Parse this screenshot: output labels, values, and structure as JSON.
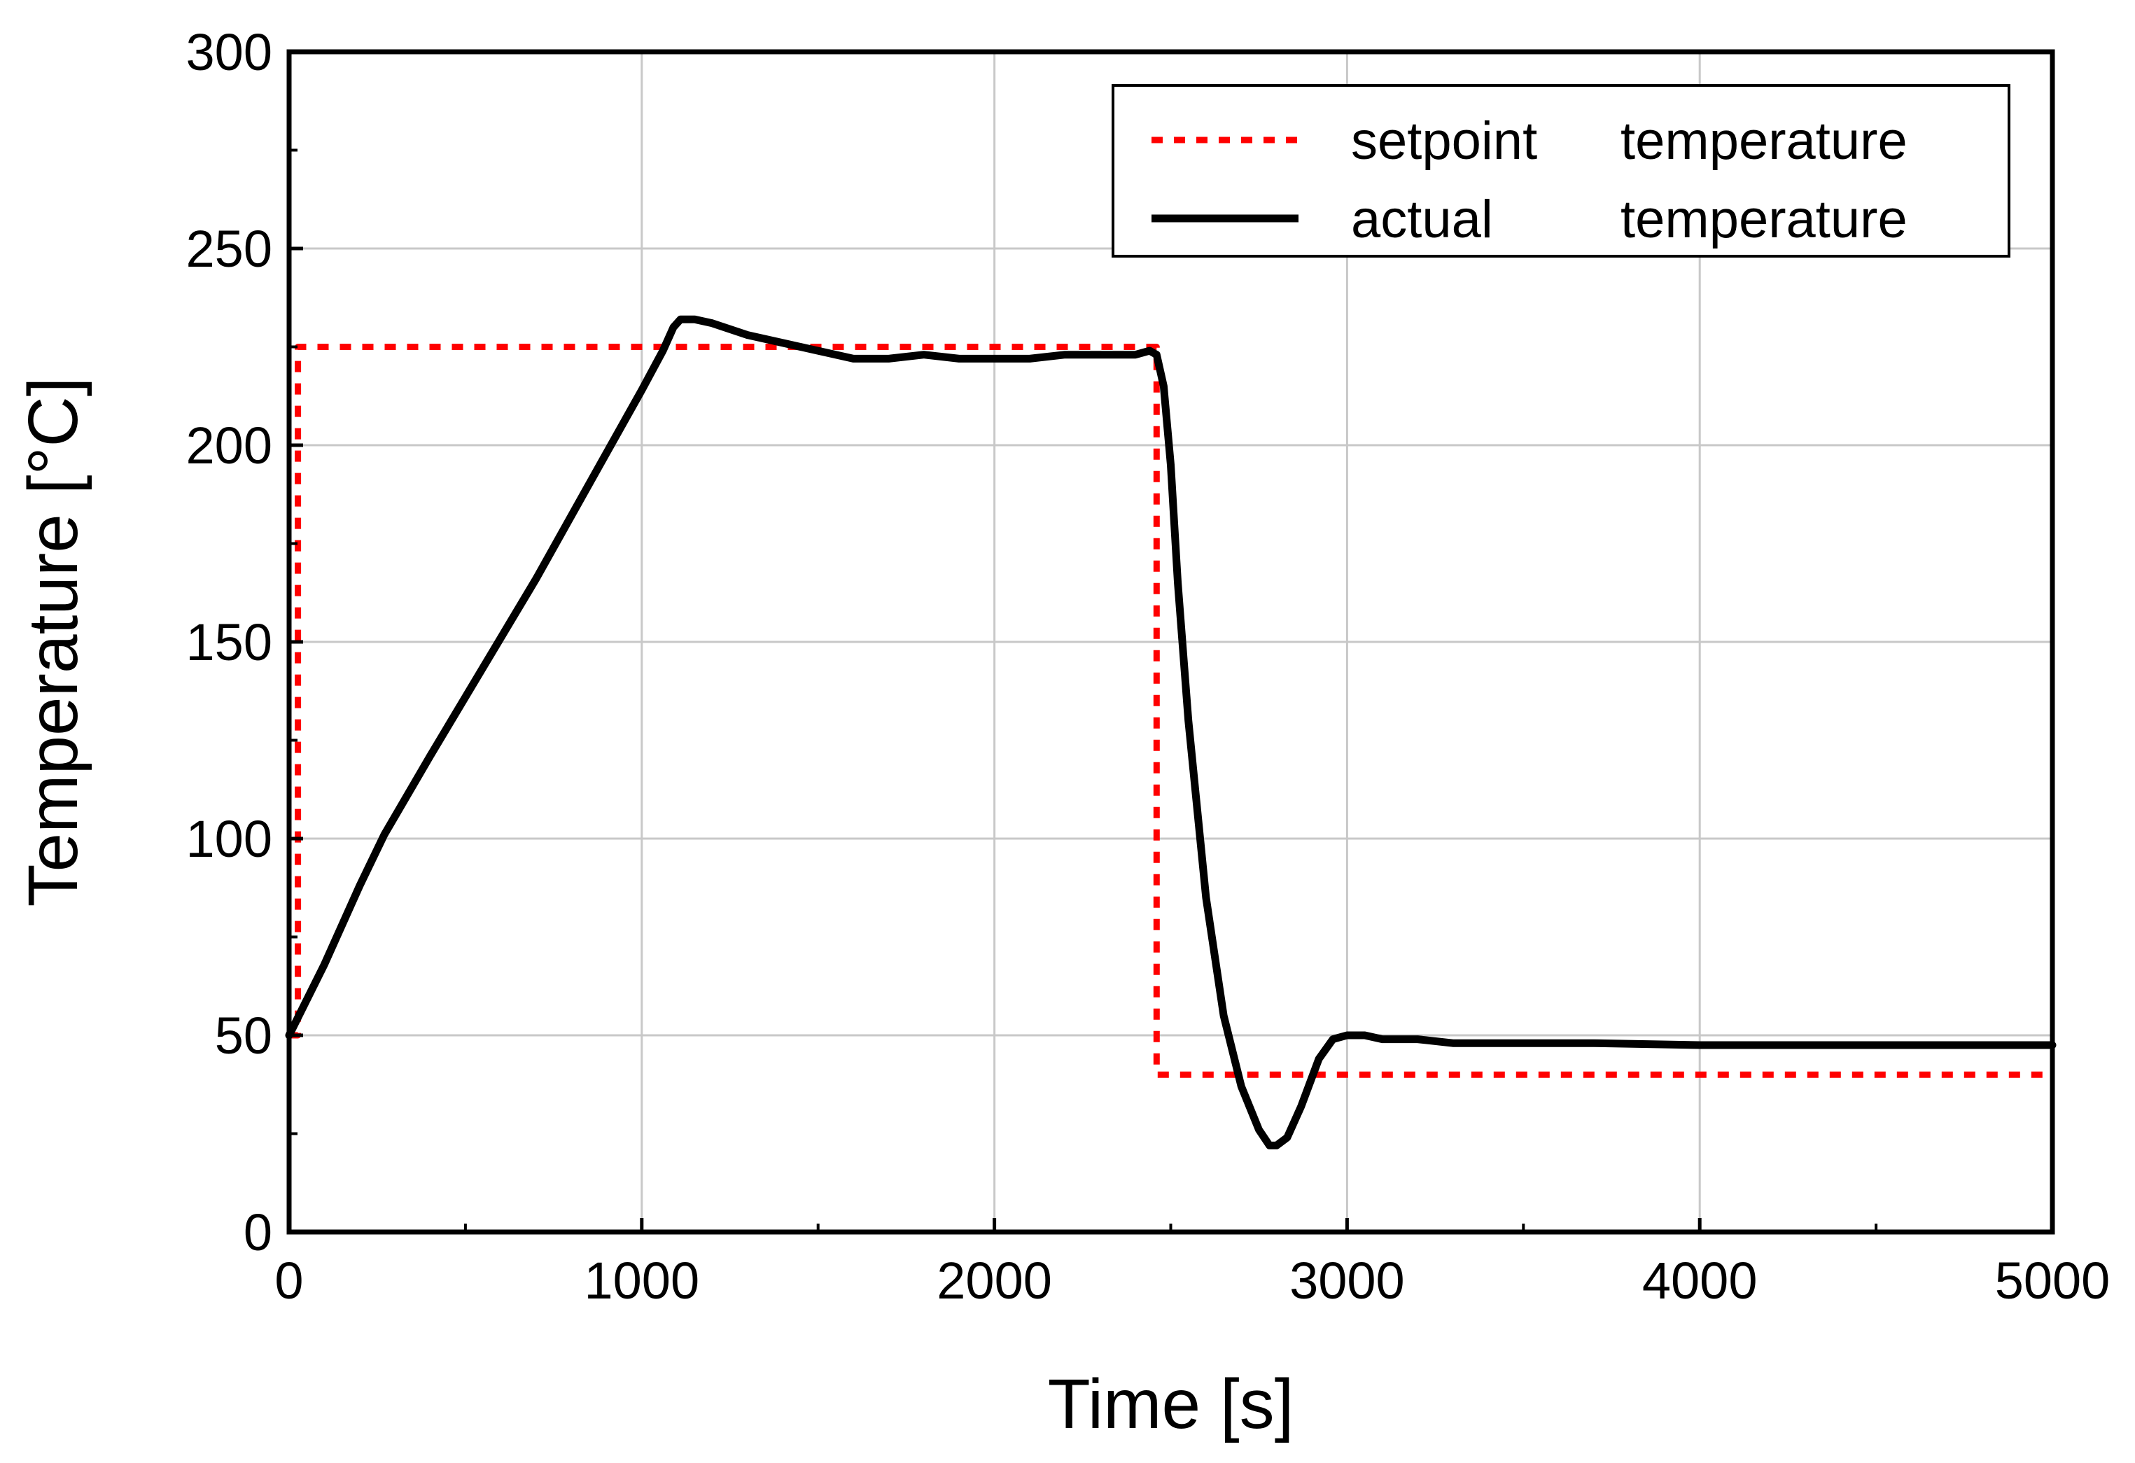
{
  "chart_data": {
    "type": "line",
    "title": "",
    "xlabel": "Time [s]",
    "ylabel": "Temperature [°C]",
    "xlim": [
      0,
      5000
    ],
    "ylim": [
      0,
      300
    ],
    "xticks": [
      0,
      1000,
      2000,
      3000,
      4000,
      5000
    ],
    "yticks": [
      0,
      50,
      100,
      150,
      200,
      250,
      300
    ],
    "grid": true,
    "legend_position": "top-right",
    "colors": {
      "setpoint": "#ff0000",
      "actual": "#000000"
    },
    "series": [
      {
        "name": "setpoint",
        "legend_label": "setpoint",
        "legend_label_2": "temperature",
        "style": "dotted",
        "x": [
          0,
          25,
          25,
          2460,
          2460,
          5000
        ],
        "y": [
          50,
          50,
          225,
          225,
          40,
          40
        ]
      },
      {
        "name": "actual",
        "legend_label": "actual",
        "legend_label_2": "temperature",
        "style": "solid",
        "x": [
          0,
          100,
          200,
          270,
          400,
          500,
          600,
          700,
          800,
          900,
          1000,
          1060,
          1090,
          1110,
          1150,
          1200,
          1300,
          1400,
          1500,
          1600,
          1700,
          1800,
          1900,
          2000,
          2100,
          2200,
          2300,
          2400,
          2440,
          2460,
          2480,
          2500,
          2520,
          2550,
          2600,
          2650,
          2700,
          2750,
          2780,
          2800,
          2830,
          2870,
          2920,
          2960,
          3000,
          3050,
          3100,
          3200,
          3300,
          3500,
          3700,
          4000,
          4500,
          5000
        ],
        "y": [
          50,
          68,
          88,
          101,
          121,
          136,
          151,
          166,
          182,
          198,
          214,
          224,
          230,
          232,
          232,
          231,
          228,
          226,
          224,
          222,
          222,
          223,
          222,
          222,
          222,
          223,
          223,
          223,
          224,
          223,
          215,
          195,
          165,
          130,
          85,
          55,
          37,
          26,
          22,
          22,
          24,
          32,
          44,
          49,
          50,
          50,
          49,
          49,
          48,
          48,
          48,
          47.5,
          47.5,
          47.5
        ]
      }
    ]
  }
}
